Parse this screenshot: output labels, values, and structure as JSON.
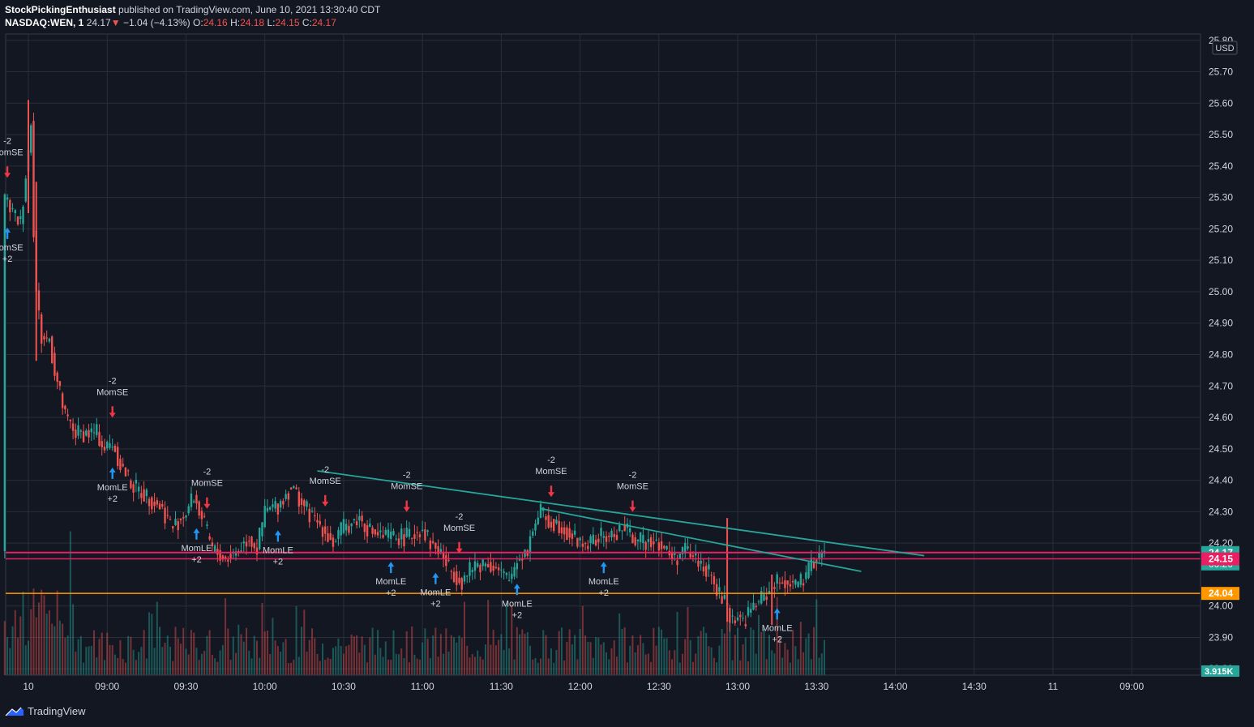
{
  "header": {
    "author": "StockPickingEnthusiast",
    "published_text": "published on TradingView.com, June 10, 2021 13:30:40 CDT",
    "symbol": "NASDAQ:WEN, 1",
    "last": "24.17",
    "change_arrow": "▼",
    "change": "−1.04 (−4.13%)",
    "o_label": "O:",
    "o_value": "24.16",
    "h_label": "H:",
    "h_value": "24.18",
    "l_label": "L:",
    "l_value": "24.15",
    "c_label": "C:",
    "c_value": "24.17"
  },
  "footer": {
    "brand": "TradingView",
    "logo_icon": "tradingview-logo-icon"
  },
  "colors": {
    "background": "#131722",
    "grid": "#2a2e39",
    "up": "#26a69a",
    "down": "#ef5350",
    "trendline": "#26a69a",
    "pink_line": "#e91e63",
    "orange_line": "#ff9800",
    "arrow_up": "#2196f3",
    "arrow_down": "#f23645",
    "text": "#d1d4dc"
  },
  "chart_data": {
    "type": "candlestick",
    "currency_label": "USD",
    "y_ticks": [
      "25.80",
      "25.70",
      "25.60",
      "25.50",
      "25.40",
      "25.30",
      "25.20",
      "25.10",
      "25.00",
      "24.90",
      "24.80",
      "24.70",
      "24.60",
      "24.50",
      "24.40",
      "24.30",
      "24.20",
      "24.00",
      "23.90",
      "23.80"
    ],
    "ylim": [
      23.78,
      25.82
    ],
    "x_ticks": [
      {
        "label": "10",
        "t": 0
      },
      {
        "label": "09:00",
        "t": 30
      },
      {
        "label": "09:30",
        "t": 60
      },
      {
        "label": "10:00",
        "t": 90
      },
      {
        "label": "10:30",
        "t": 120
      },
      {
        "label": "11:00",
        "t": 150
      },
      {
        "label": "11:30",
        "t": 180
      },
      {
        "label": "12:00",
        "t": 210
      },
      {
        "label": "12:30",
        "t": 240
      },
      {
        "label": "13:00",
        "t": 270
      },
      {
        "label": "13:30",
        "t": 300
      },
      {
        "label": "14:00",
        "t": 330
      },
      {
        "label": "14:30",
        "t": 360
      },
      {
        "label": "11",
        "t": 390
      },
      {
        "label": "09:00",
        "t": 420
      }
    ],
    "price_path": [
      [
        -9,
        25.3
      ],
      [
        -6,
        25.25
      ],
      [
        -3,
        25.22
      ],
      [
        0,
        25.45
      ],
      [
        1,
        25.55
      ],
      [
        2,
        25.2
      ],
      [
        3,
        25.0
      ],
      [
        5,
        24.85
      ],
      [
        8,
        24.85
      ],
      [
        10,
        24.75
      ],
      [
        14,
        24.6
      ],
      [
        18,
        24.55
      ],
      [
        22,
        24.55
      ],
      [
        26,
        24.55
      ],
      [
        29,
        24.5
      ],
      [
        32,
        24.52
      ],
      [
        35,
        24.45
      ],
      [
        40,
        24.38
      ],
      [
        45,
        24.35
      ],
      [
        50,
        24.32
      ],
      [
        55,
        24.25
      ],
      [
        60,
        24.3
      ],
      [
        63,
        24.35
      ],
      [
        66,
        24.28
      ],
      [
        70,
        24.18
      ],
      [
        75,
        24.15
      ],
      [
        80,
        24.18
      ],
      [
        84,
        24.22
      ],
      [
        87,
        24.18
      ],
      [
        90,
        24.3
      ],
      [
        95,
        24.32
      ],
      [
        100,
        24.38
      ],
      [
        104,
        24.33
      ],
      [
        108,
        24.28
      ],
      [
        112,
        24.25
      ],
      [
        116,
        24.2
      ],
      [
        120,
        24.25
      ],
      [
        126,
        24.28
      ],
      [
        130,
        24.24
      ],
      [
        135,
        24.22
      ],
      [
        140,
        24.22
      ],
      [
        145,
        24.22
      ],
      [
        150,
        24.25
      ],
      [
        153,
        24.2
      ],
      [
        157,
        24.17
      ],
      [
        160,
        24.12
      ],
      [
        165,
        24.08
      ],
      [
        170,
        24.13
      ],
      [
        175,
        24.14
      ],
      [
        180,
        24.1
      ],
      [
        183,
        24.08
      ],
      [
        186,
        24.15
      ],
      [
        190,
        24.18
      ],
      [
        192,
        24.25
      ],
      [
        195,
        24.3
      ],
      [
        198,
        24.27
      ],
      [
        202,
        24.26
      ],
      [
        206,
        24.23
      ],
      [
        210,
        24.2
      ],
      [
        214,
        24.2
      ],
      [
        218,
        24.22
      ],
      [
        222,
        24.22
      ],
      [
        226,
        24.25
      ],
      [
        230,
        24.22
      ],
      [
        234,
        24.2
      ],
      [
        238,
        24.22
      ],
      [
        242,
        24.18
      ],
      [
        246,
        24.15
      ],
      [
        250,
        24.18
      ],
      [
        254,
        24.15
      ],
      [
        258,
        24.12
      ],
      [
        262,
        24.05
      ],
      [
        264,
        24.02
      ],
      [
        266,
        24.0
      ],
      [
        268,
        23.95
      ],
      [
        270,
        23.97
      ],
      [
        272,
        23.95
      ],
      [
        276,
        24.0
      ],
      [
        280,
        24.03
      ],
      [
        284,
        24.07
      ],
      [
        288,
        24.08
      ],
      [
        292,
        24.07
      ],
      [
        296,
        24.08
      ],
      [
        298,
        24.14
      ],
      [
        301,
        24.16
      ],
      [
        303,
        24.17
      ]
    ],
    "spikes": [
      {
        "t": 0,
        "high": 25.61,
        "low": 25.25
      },
      {
        "t": 3,
        "high": 25.35,
        "low": 24.78
      },
      {
        "t": 266,
        "high": 24.28,
        "low": 23.95
      },
      {
        "t": 283,
        "high": 24.1,
        "low": 23.94
      }
    ],
    "volume_label": "3.915K",
    "horizontal_lines": [
      {
        "price": 24.17,
        "label": "24.17",
        "sublabel": "00:20",
        "color": "#26a69a",
        "line": "#e91e63",
        "dotted": true
      },
      {
        "price": 24.15,
        "label": "24.15",
        "color": "#e91e63",
        "line": "#e91e63"
      },
      {
        "price": 24.04,
        "label": "24.04",
        "color": "#ff9800",
        "line": "#ff9800"
      }
    ],
    "trendlines": [
      {
        "t1": 110,
        "p1": 24.43,
        "t2": 341,
        "p2": 24.16
      },
      {
        "t1": 195,
        "p1": 24.31,
        "t2": 317,
        "p2": 24.11
      }
    ],
    "signals": [
      {
        "t": -8,
        "type": "SE",
        "label": "MomSE",
        "qty": "-2"
      },
      {
        "t": -8,
        "type": "LE",
        "label": "MomSE",
        "qty": "+2"
      },
      {
        "t": 32,
        "type": "SE",
        "label": "MomSE",
        "qty": "-2"
      },
      {
        "t": 32,
        "type": "LE",
        "label": "MomLE",
        "qty": "+2"
      },
      {
        "t": 68,
        "type": "SE",
        "label": "MomSE",
        "qty": "-2"
      },
      {
        "t": 64,
        "type": "LE",
        "label": "MomLE",
        "qty": "+2"
      },
      {
        "t": 113,
        "type": "SE",
        "label": "MomSE",
        "qty": "-2"
      },
      {
        "t": 95,
        "type": "LE",
        "label": "MomLE",
        "qty": "+2"
      },
      {
        "t": 144,
        "type": "SE",
        "label": "MomSE",
        "qty": "-2"
      },
      {
        "t": 138,
        "type": "LE",
        "label": "MomLE",
        "qty": "+2"
      },
      {
        "t": 164,
        "type": "SE",
        "label": "MomSE",
        "qty": "-2"
      },
      {
        "t": 155,
        "type": "LE",
        "label": "MomLE",
        "qty": "+2"
      },
      {
        "t": 199,
        "type": "SE",
        "label": "MomSE",
        "qty": "-2"
      },
      {
        "t": 186,
        "type": "LE",
        "label": "MomLE",
        "qty": "+2"
      },
      {
        "t": 230,
        "type": "SE",
        "label": "MomSE",
        "qty": "-2"
      },
      {
        "t": 219,
        "type": "LE",
        "label": "MomLE",
        "qty": "+2"
      },
      {
        "t": 285,
        "type": "LE",
        "label": "MomLE",
        "qty": "+2"
      }
    ]
  }
}
